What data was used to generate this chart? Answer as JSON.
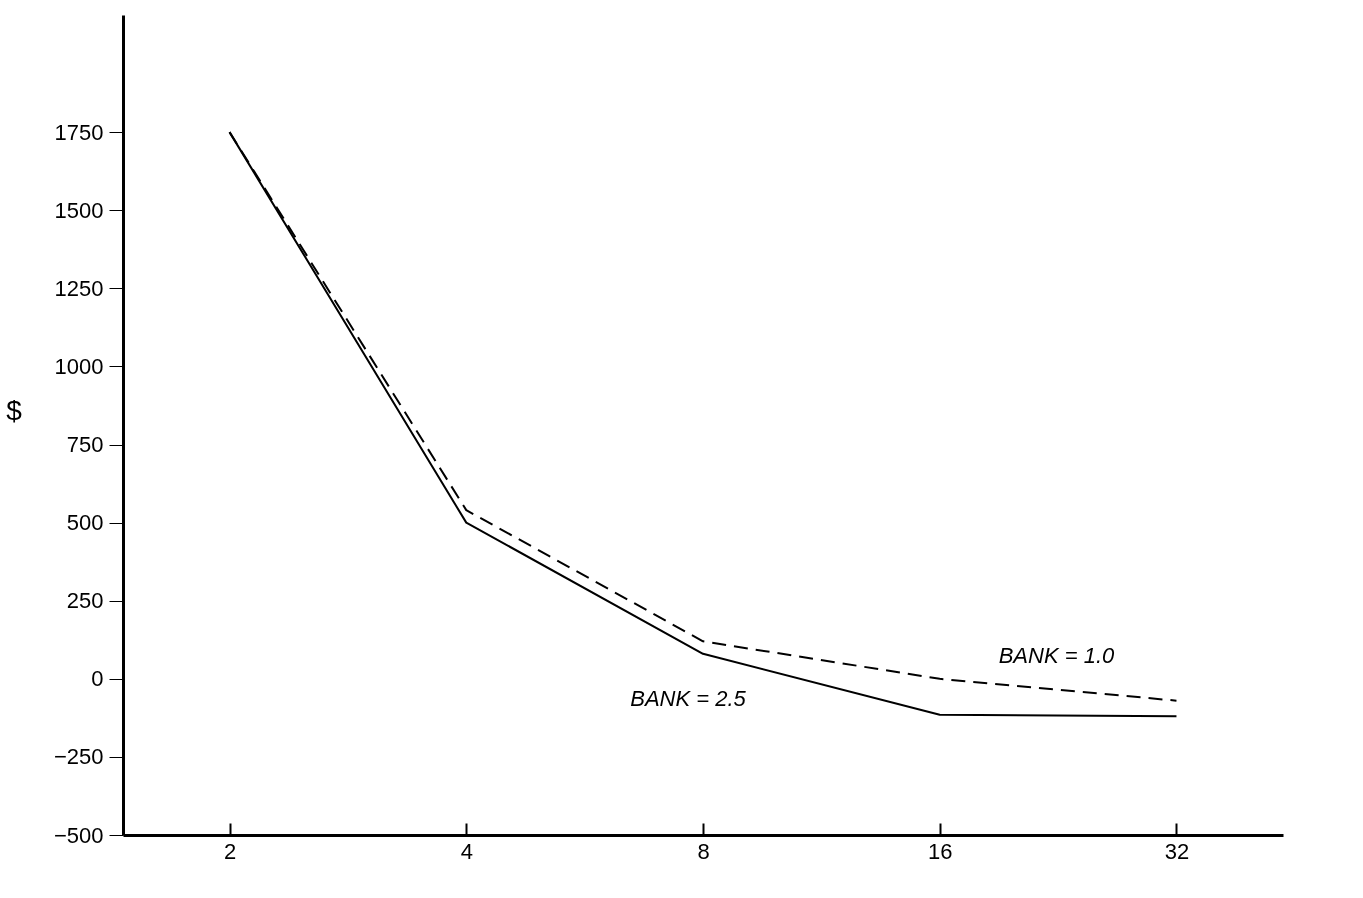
{
  "chart_data": {
    "type": "line",
    "ylabel": "$",
    "categories": [
      "2",
      "4",
      "8",
      "16",
      "32"
    ],
    "ylim": [
      -500,
      2125
    ],
    "yticks": [
      -500,
      -250,
      0,
      250,
      500,
      750,
      1000,
      1250,
      1500,
      1750
    ],
    "grid": false,
    "legend": false,
    "marker": "none",
    "series": [
      {
        "name": "BANK = 2.5",
        "color": "#000000",
        "line_style": "solid",
        "values": [
          1750,
          500,
          80,
          -115,
          -120
        ]
      },
      {
        "name": "BANK = 1.0",
        "color": "#000000",
        "line_style": "dashed",
        "values": [
          1750,
          540,
          120,
          0,
          -70
        ]
      }
    ]
  }
}
